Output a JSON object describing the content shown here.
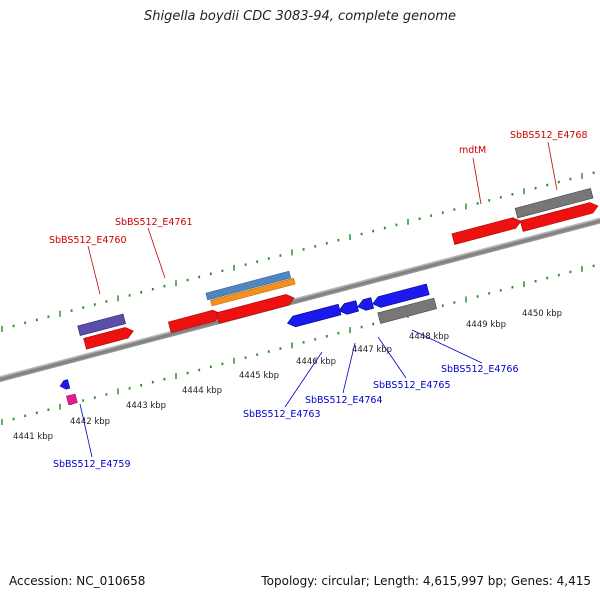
{
  "title": "Shigella boydii CDC 3083-94, complete genome",
  "accession_text": "Accession: NC_010658",
  "summary_text": "Topology: circular; Length: 4,615,997 bp; Genes: 4,415",
  "colors": {
    "backbone": "#888888",
    "tick_top": "#228b22",
    "tick_bottom": "#228b22",
    "label_top": "#cc0000",
    "label_bottom": "#0000cc",
    "gene_red": "#ee1111",
    "gene_blue": "#1a1aee",
    "gene_gray": "#777777",
    "gene_purple": "#5a4ea8",
    "gene_magenta": "#e0208a",
    "gene_steelblue": "#4f86c0",
    "gene_orange": "#f5901e"
  },
  "scale_labels": [
    "4441 kbp",
    "4442 kbp",
    "4443 kbp",
    "4444 kbp",
    "4445 kbp",
    "4446 kbp",
    "4447 kbp",
    "4448 kbp",
    "4449 kbp",
    "4450 kbp"
  ],
  "top_labels": [
    "SbBS512_E4760",
    "SbBS512_E4761",
    "mdtM",
    "SbBS512_E4768"
  ],
  "bottom_labels": [
    "SbBS512_E4759",
    "SbBS512_E4763",
    "SbBS512_E4764",
    "SbBS512_E4765",
    "SbBS512_E4766"
  ]
}
